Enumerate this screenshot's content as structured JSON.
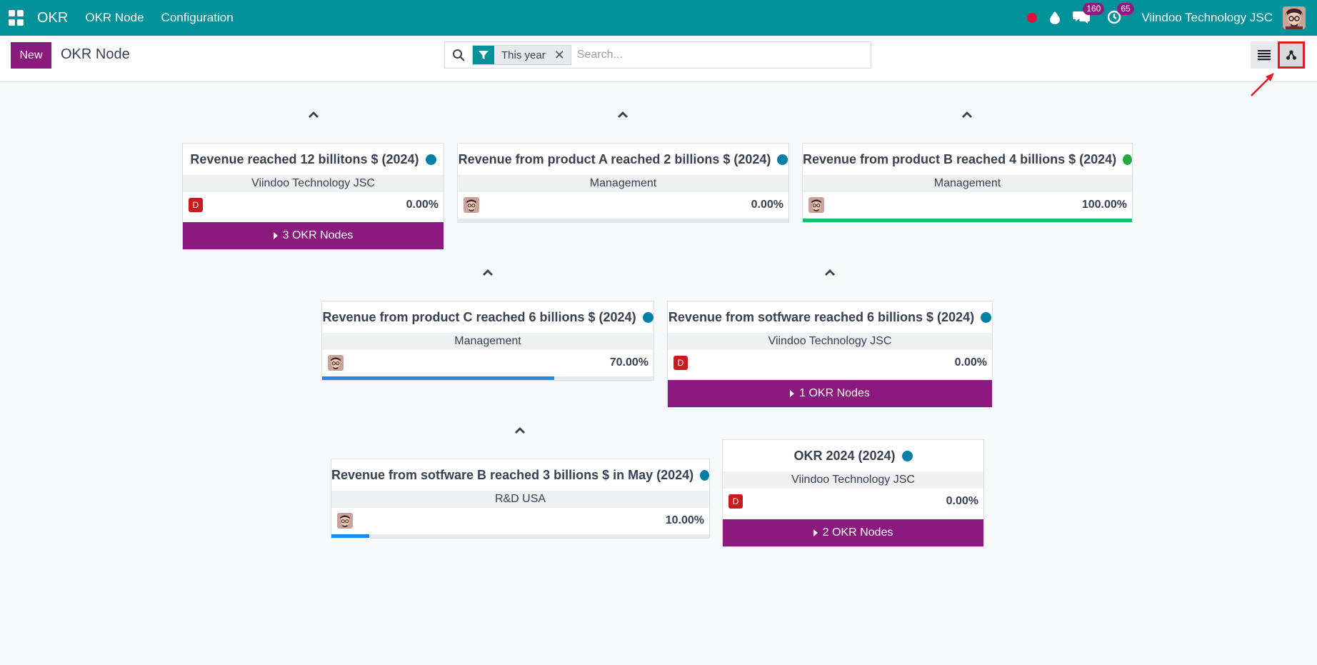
{
  "navbar": {
    "brand": "OKR",
    "menu": [
      "OKR Node",
      "Configuration"
    ],
    "chat_badge": "160",
    "activity_badge": "65",
    "company": "Viindoo Technology JSC"
  },
  "control_panel": {
    "new_label": "New",
    "title": "OKR Node",
    "facet": "This year",
    "search_placeholder": "Search..."
  },
  "colors": {
    "brand": "#01919a",
    "primary": "#8b1a7f",
    "status_blue": "#0180a5",
    "status_green": "#28a745",
    "progress_blue": "#1f8ae0",
    "progress_green": "#1bbf6b"
  },
  "nodes": [
    {
      "title": "Revenue reached 12 billitons $ (2024)",
      "status": "blue",
      "subtitle": "Viindoo Technology JSC",
      "user": "D",
      "percent": "0.00%",
      "progress": 0,
      "children_label": "3 OKR Nodes"
    },
    {
      "title": "Revenue from product A reached 2 billions $ (2024)",
      "status": "blue",
      "subtitle": "Management",
      "user": "avatar",
      "percent": "0.00%",
      "progress": 0
    },
    {
      "title": "Revenue from product B reached 4 billions $ (2024)",
      "status": "green",
      "subtitle": "Management",
      "user": "avatar",
      "percent": "100.00%",
      "progress": 100
    },
    {
      "title": "Revenue from product C reached 6 billions $ (2024)",
      "status": "blue",
      "subtitle": "Management",
      "user": "avatar",
      "percent": "70.00%",
      "progress": 70
    },
    {
      "title": "Revenue from sotfware reached 6 billions $ (2024)",
      "status": "blue",
      "subtitle": "Viindoo Technology JSC",
      "user": "D",
      "percent": "0.00%",
      "progress": 0,
      "children_label": "1 OKR Nodes"
    },
    {
      "title": "Revenue from sotfware B reached 3 billions $ in May (2024)",
      "status": "blue",
      "subtitle": "R&D USA",
      "user": "avatar",
      "percent": "10.00%",
      "progress": 10
    },
    {
      "title": "OKR 2024 (2024)",
      "status": "blue",
      "subtitle": "Viindoo Technology JSC",
      "user": "D",
      "percent": "0.00%",
      "progress": 0,
      "children_label": "2 OKR Nodes"
    }
  ]
}
